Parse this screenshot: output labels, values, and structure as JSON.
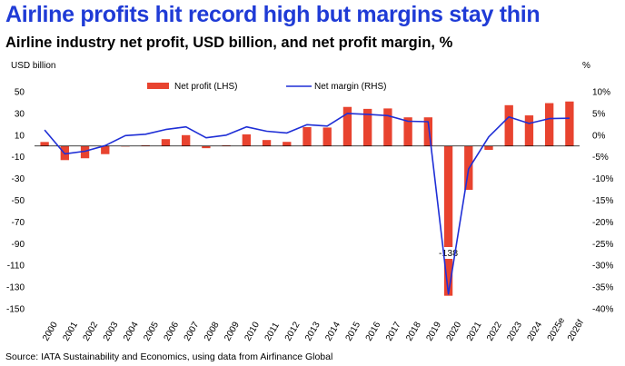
{
  "title": "Airline profits hit record high but margins stay thin",
  "subtitle": "Airline industry net profit, USD billion, and net profit margin, %",
  "source": "Source: IATA Sustainability and Economics, using data from Airfinance Global",
  "colors": {
    "title": "#1f3bd6",
    "bar": "#e8432f",
    "line": "#1f2fd6"
  },
  "chart_data": {
    "type": "bar+line",
    "categories": [
      "2000",
      "2001",
      "2002",
      "2003",
      "2004",
      "2005",
      "2006",
      "2007",
      "2008",
      "2009",
      "2010",
      "2011",
      "2012",
      "2013",
      "2014",
      "2015",
      "2016",
      "2017",
      "2018",
      "2019",
      "2020",
      "2021",
      "2022",
      "2023",
      "2024",
      "2025e",
      "2026f"
    ],
    "series": [
      {
        "name": "Net profit (LHS)",
        "type": "bar",
        "axis": "left",
        "values": [
          3.7,
          -13,
          -11.3,
          -7.5,
          -0.5,
          0.6,
          6.3,
          10,
          -2,
          0.6,
          10.7,
          5.5,
          3.8,
          17.4,
          17,
          36,
          34.2,
          34.6,
          26.4,
          26.4,
          -138,
          -40.4,
          -3.6,
          37.6,
          28.2,
          39.5,
          41
        ]
      },
      {
        "name": "Net margin (RHS)",
        "type": "line",
        "axis": "right",
        "values": [
          1.2,
          -4.3,
          -3.7,
          -2.4,
          -0.1,
          0.2,
          1.3,
          1.9,
          -0.6,
          0.0,
          1.9,
          0.9,
          0.5,
          2.4,
          2.1,
          5.0,
          4.8,
          4.5,
          3.2,
          3.1,
          -36.6,
          -7.8,
          -0.4,
          4.2,
          2.7,
          3.8,
          3.9
        ]
      }
    ],
    "annotation": {
      "category": "2020",
      "text": "-138"
    },
    "yleft": {
      "label": "USD billion",
      "min": -150,
      "max": 50,
      "ticks": [
        50,
        30,
        10,
        -10,
        -30,
        -50,
        -70,
        -90,
        -110,
        -130,
        -150
      ]
    },
    "yright": {
      "label": "%",
      "min": -40,
      "max": 10,
      "ticks": [
        "10%",
        "5%",
        "0%",
        "-5%",
        "-10%",
        "-15%",
        "-20%",
        "-25%",
        "-30%",
        "-35%",
        "-40%"
      ],
      "tick_values": [
        10,
        5,
        0,
        -5,
        -10,
        -15,
        -20,
        -25,
        -30,
        -35,
        -40
      ]
    },
    "legend": {
      "position": "top-center"
    },
    "grid": false
  }
}
